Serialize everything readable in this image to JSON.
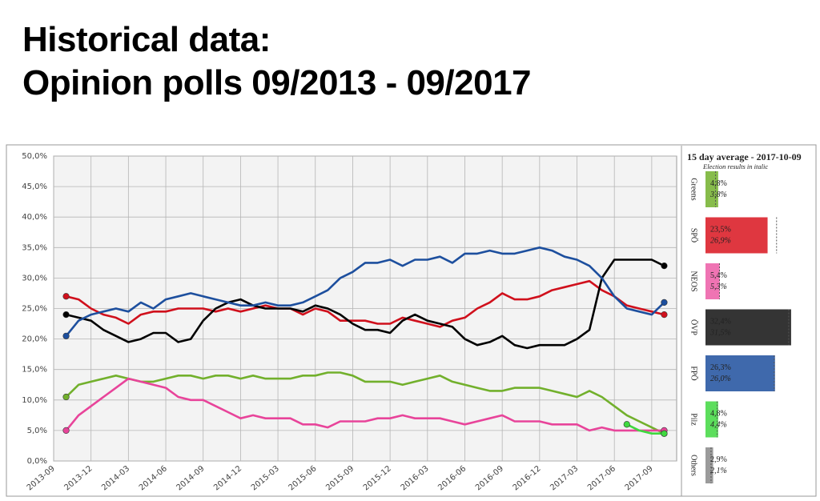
{
  "header": {
    "line1": "Historical data:",
    "line2": "Opinion polls 09/2013 - 09/2017"
  },
  "chart_data": [
    {
      "type": "line",
      "x": [
        "2013-10",
        "2013-11",
        "2013-12",
        "2014-01",
        "2014-02",
        "2014-03",
        "2014-04",
        "2014-05",
        "2014-06",
        "2014-07",
        "2014-08",
        "2014-09",
        "2014-10",
        "2014-11",
        "2014-12",
        "2015-01",
        "2015-02",
        "2015-03",
        "2015-04",
        "2015-05",
        "2015-06",
        "2015-07",
        "2015-08",
        "2015-09",
        "2015-10",
        "2015-11",
        "2015-12",
        "2016-01",
        "2016-02",
        "2016-03",
        "2016-04",
        "2016-05",
        "2016-06",
        "2016-07",
        "2016-08",
        "2016-09",
        "2016-10",
        "2016-11",
        "2016-12",
        "2017-01",
        "2017-02",
        "2017-03",
        "2017-04",
        "2017-05",
        "2017-06",
        "2017-07",
        "2017-08",
        "2017-09",
        "2017-10"
      ],
      "xlim": [
        "2013-09",
        "2017-11"
      ],
      "xticks": [
        "2013-09",
        "2013-12",
        "2014-03",
        "2014-06",
        "2014-09",
        "2014-12",
        "2015-03",
        "2015-06",
        "2015-09",
        "2015-12",
        "2016-03",
        "2016-06",
        "2016-09",
        "2016-12",
        "2017-03",
        "2017-06",
        "2017-09"
      ],
      "ylim": [
        0,
        50
      ],
      "yticks": [
        {
          "value": 0,
          "label": "0,0%"
        },
        {
          "value": 5,
          "label": "5,0%"
        },
        {
          "value": 10,
          "label": "10,0%"
        },
        {
          "value": 15,
          "label": "15,0%"
        },
        {
          "value": 20,
          "label": "20,0%"
        },
        {
          "value": 25,
          "label": "25,0%"
        },
        {
          "value": 30,
          "label": "30,0%"
        },
        {
          "value": 35,
          "label": "35,0%"
        },
        {
          "value": 40,
          "label": "40,0%"
        },
        {
          "value": 45,
          "label": "45,0%"
        },
        {
          "value": 50,
          "label": "50,0%"
        }
      ],
      "grid": true,
      "series": [
        {
          "name": "Greens",
          "color": "#72b02c",
          "values": [
            10.5,
            12.5,
            13,
            13.5,
            14,
            13.5,
            13,
            13,
            13.5,
            14,
            14,
            13.5,
            14,
            14,
            13.5,
            14,
            13.5,
            13.5,
            13.5,
            14,
            14,
            14.5,
            14.5,
            14,
            13,
            13,
            13,
            12.5,
            13,
            13.5,
            14,
            13,
            12.5,
            12,
            11.5,
            11.5,
            12,
            12,
            12,
            11.5,
            11,
            10.5,
            11.5,
            10.5,
            9,
            7.5,
            6.5,
            5.5,
            4.5
          ]
        },
        {
          "name": "NEOS",
          "color": "#e8449a",
          "values": [
            5,
            7.5,
            9,
            10.5,
            12,
            13.5,
            13,
            12.5,
            12,
            10.5,
            10,
            10,
            9,
            8,
            7,
            7.5,
            7,
            7,
            7,
            6,
            6,
            5.5,
            6.5,
            6.5,
            6.5,
            7,
            7,
            7.5,
            7,
            7,
            7,
            6.5,
            6,
            6.5,
            7,
            7.5,
            6.5,
            6.5,
            6.5,
            6,
            6,
            6,
            5,
            5.5,
            5,
            5,
            5,
            5,
            5
          ]
        },
        {
          "name": "SPÖ",
          "color": "#d0101c",
          "values": [
            27,
            26.5,
            25,
            24,
            23.5,
            22.5,
            24,
            24.5,
            24.5,
            25,
            25,
            25,
            24.5,
            25,
            24.5,
            25,
            25.5,
            25,
            25,
            24,
            25,
            24.5,
            23,
            23,
            23,
            22.5,
            22.5,
            23.5,
            23,
            22.5,
            22,
            23,
            23.5,
            25,
            26,
            27.5,
            26.5,
            26.5,
            27,
            28,
            28.5,
            29,
            29.5,
            28,
            27,
            25.5,
            25,
            24.5,
            24
          ]
        },
        {
          "name": "ÖVP",
          "color": "#000000",
          "values": [
            24,
            23.5,
            23,
            21.5,
            20.5,
            19.5,
            20,
            21,
            21,
            19.5,
            20,
            23,
            25,
            26,
            26.5,
            25.5,
            25,
            25,
            25,
            24.5,
            25.5,
            25,
            24,
            22.5,
            21.5,
            21.5,
            21,
            23,
            24,
            23,
            22.5,
            22,
            20,
            19,
            19.5,
            20.5,
            19,
            18.5,
            19,
            19,
            19,
            20,
            21.5,
            30,
            33,
            33,
            33,
            33,
            32
          ]
        },
        {
          "name": "FPÖ",
          "color": "#1d4f9e",
          "values": [
            20.5,
            23,
            24,
            24.5,
            25,
            24.5,
            26,
            25,
            26.5,
            27,
            27.5,
            27,
            26.5,
            26,
            25.5,
            25.5,
            26,
            25.5,
            25.5,
            26,
            27,
            28,
            30,
            31,
            32.5,
            32.5,
            33,
            32,
            33,
            33,
            33.5,
            32.5,
            34,
            34,
            34.5,
            34,
            34,
            34.5,
            35,
            34.5,
            33.5,
            33,
            32,
            30,
            27,
            25,
            24.5,
            24,
            26
          ]
        },
        {
          "name": "Pilz",
          "color": "#3fd83f",
          "values": [
            null,
            null,
            null,
            null,
            null,
            null,
            null,
            null,
            null,
            null,
            null,
            null,
            null,
            null,
            null,
            null,
            null,
            null,
            null,
            null,
            null,
            null,
            null,
            null,
            null,
            null,
            null,
            null,
            null,
            null,
            null,
            null,
            null,
            null,
            null,
            null,
            null,
            null,
            null,
            null,
            null,
            null,
            null,
            null,
            null,
            6,
            5,
            4.5,
            4.5
          ]
        }
      ]
    },
    {
      "type": "bar",
      "title": "15 day average - 2017-10-09",
      "subtitle": "Election results in italic",
      "categories": [
        "Greens",
        "SPÖ",
        "NEOS",
        "ÖVP",
        "FPÖ",
        "Pilz",
        "Others"
      ],
      "colors": [
        "#72b02c",
        "#d9141f",
        "#ec5ca6",
        "#111111",
        "#1d4f9e",
        "#3fd83f",
        "#8a8a8a"
      ],
      "values": [
        4.8,
        23.5,
        5.4,
        32.4,
        26.3,
        4.8,
        2.9
      ],
      "value_labels": [
        "4,8%",
        "23,5%",
        "5,4%",
        "32,4%",
        "26,3%",
        "4,8%",
        "2,9%"
      ],
      "election_values": [
        3.8,
        26.9,
        5.3,
        31.5,
        26.0,
        4.4,
        2.1
      ],
      "election_value_labels": [
        "3,8%",
        "26,9%",
        "5,3%",
        "31,5%",
        "26,0%",
        "4,4%",
        "2,1%"
      ]
    }
  ]
}
